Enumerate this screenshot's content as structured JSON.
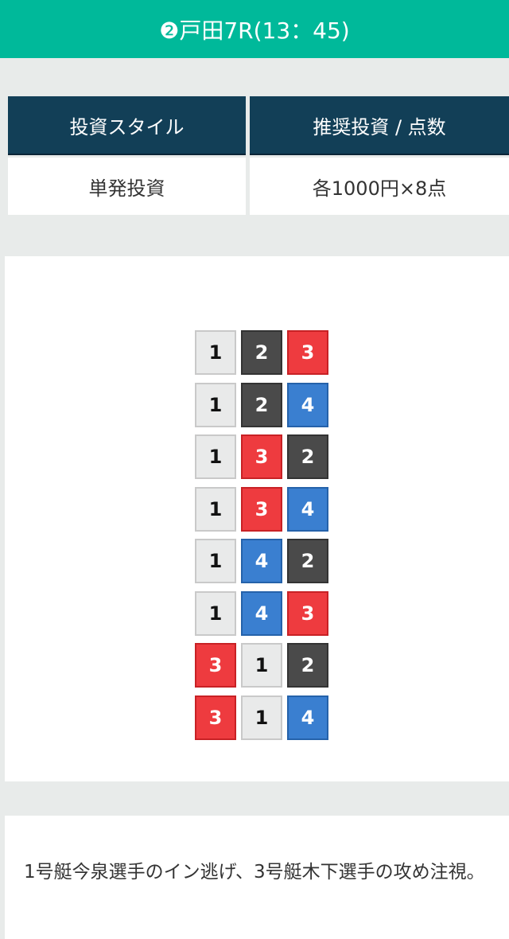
{
  "header": {
    "title": "❷戸田7R(13：45)"
  },
  "table": {
    "headers": [
      "投資スタイル",
      "推奨投資 / 点数"
    ],
    "values": [
      "単発投資",
      "各1000円×8点"
    ]
  },
  "combinations": [
    [
      1,
      2,
      3
    ],
    [
      1,
      2,
      4
    ],
    [
      1,
      3,
      2
    ],
    [
      1,
      3,
      4
    ],
    [
      1,
      4,
      2
    ],
    [
      1,
      4,
      3
    ],
    [
      3,
      1,
      2
    ],
    [
      3,
      1,
      4
    ]
  ],
  "boat_colors": {
    "1": "#e9eaea",
    "2": "#4a4a4a",
    "3": "#ee3b3f",
    "4": "#3a7fd0"
  },
  "comment": {
    "text": "1号艇今泉選手のイン逃げ、3号艇木下選手の攻め注視。"
  }
}
